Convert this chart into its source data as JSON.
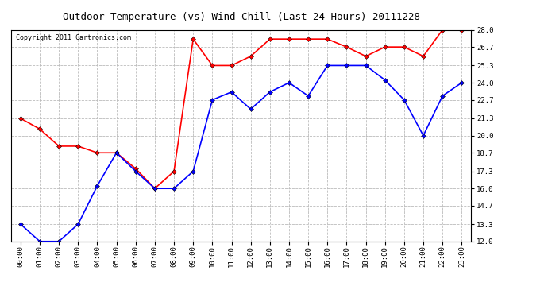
{
  "title": "Outdoor Temperature (vs) Wind Chill (Last 24 Hours) 20111228",
  "copyright": "Copyright 2011 Cartronics.com",
  "x_labels": [
    "00:00",
    "01:00",
    "02:00",
    "03:00",
    "04:00",
    "05:00",
    "06:00",
    "07:00",
    "08:00",
    "09:00",
    "10:00",
    "11:00",
    "12:00",
    "13:00",
    "14:00",
    "15:00",
    "16:00",
    "17:00",
    "18:00",
    "19:00",
    "20:00",
    "21:00",
    "22:00",
    "23:00"
  ],
  "red_data": [
    21.3,
    20.5,
    19.2,
    19.2,
    18.7,
    18.7,
    17.5,
    16.0,
    17.3,
    27.3,
    25.3,
    25.3,
    26.0,
    27.3,
    27.3,
    27.3,
    27.3,
    26.7,
    26.0,
    26.7,
    26.7,
    26.0,
    28.0,
    28.0
  ],
  "blue_data": [
    13.3,
    12.0,
    12.0,
    13.3,
    16.2,
    18.7,
    17.3,
    16.0,
    16.0,
    17.3,
    22.7,
    23.3,
    22.0,
    23.3,
    24.0,
    23.0,
    25.3,
    25.3,
    25.3,
    24.2,
    22.7,
    20.0,
    23.0,
    24.0
  ],
  "ylim": [
    12.0,
    28.0
  ],
  "yticks": [
    12.0,
    13.3,
    14.7,
    16.0,
    17.3,
    18.7,
    20.0,
    21.3,
    22.7,
    24.0,
    25.3,
    26.7,
    28.0
  ],
  "red_color": "#ff0000",
  "blue_color": "#0000ff",
  "bg_color": "#ffffff",
  "grid_color": "#bbbbbb",
  "title_fontsize": 9,
  "copyright_fontsize": 6,
  "tick_fontsize": 6.5,
  "marker": "D",
  "marker_size": 3
}
